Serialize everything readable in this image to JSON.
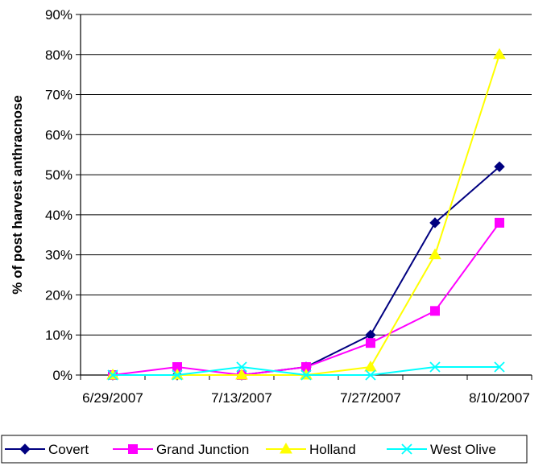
{
  "chart_data": {
    "type": "line",
    "title": "",
    "xlabel": "",
    "ylabel": "% of post harvest anthracnose",
    "x": [
      "6/29/2007",
      "7/6/2007",
      "7/13/2007",
      "7/20/2007",
      "7/27/2007",
      "8/3/2007",
      "8/10/2007"
    ],
    "x_tick_labels": [
      "6/29/2007",
      "7/13/2007",
      "7/27/2007",
      "8/10/2007"
    ],
    "y_tick_labels": [
      "0%",
      "10%",
      "20%",
      "30%",
      "40%",
      "50%",
      "60%",
      "70%",
      "80%",
      "90%"
    ],
    "ylim": [
      0,
      90
    ],
    "y_unit": "%",
    "grid": "horizontal",
    "legend_position": "bottom",
    "series": [
      {
        "name": "Covert",
        "color": "#000080",
        "marker": "diamond",
        "values": [
          0,
          0,
          0,
          2,
          10,
          38,
          52
        ]
      },
      {
        "name": "Grand Junction",
        "color": "#FF00FF",
        "marker": "square",
        "values": [
          0,
          2,
          0,
          2,
          8,
          16,
          38
        ]
      },
      {
        "name": "Holland",
        "color": "#FFFF00",
        "marker": "triangle",
        "values": [
          0,
          0,
          0,
          0,
          2,
          30,
          80
        ]
      },
      {
        "name": "West Olive",
        "color": "#00FFFF",
        "marker": "x",
        "values": [
          0,
          0,
          2,
          0,
          0,
          2,
          2
        ]
      }
    ]
  }
}
